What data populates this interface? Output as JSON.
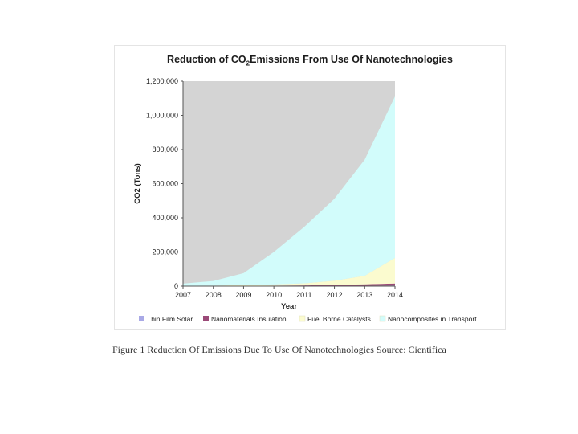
{
  "chart_data": {
    "type": "area",
    "stacked": true,
    "title_parts": {
      "pre": "Reduction of CO",
      "sub": "2",
      "post": "Emissions From Use Of Nanotechnologies"
    },
    "xlabel": "Year",
    "ylabel": "CO2 (Tons)",
    "x": [
      2007,
      2008,
      2009,
      2010,
      2011,
      2012,
      2013,
      2014
    ],
    "ylim": [
      0,
      1200000
    ],
    "yticks": [
      "0",
      "200,000",
      "400,000",
      "600,000",
      "800,000",
      "1,000,000",
      "1,200,000"
    ],
    "xticks": [
      "2007",
      "2008",
      "2009",
      "2010",
      "2011",
      "2012",
      "2013",
      "2014"
    ],
    "legend_position": "bottom",
    "plot_background": "#d4d4d4",
    "series": [
      {
        "name": "Thin Film Solar",
        "color": "#a9a9e6",
        "values": [
          200,
          300,
          500,
          800,
          1200,
          1800,
          2600,
          3500
        ]
      },
      {
        "name": "Nanomaterials Insulation",
        "color": "#9b4a78",
        "values": [
          500,
          800,
          1200,
          2000,
          3000,
          5000,
          8000,
          12000
        ]
      },
      {
        "name": "Fuel Borne Catalysts",
        "color": "#fbfbcf",
        "values": [
          1000,
          2000,
          4000,
          7000,
          12000,
          25000,
          50000,
          150000
        ]
      },
      {
        "name": "Nanocomposites in Transport",
        "color": "#d2fcfb",
        "values": [
          13000,
          27000,
          70000,
          190000,
          330000,
          480000,
          680000,
          945000
        ]
      }
    ]
  },
  "caption": "Figure 1 Reduction Of Emissions Due To Use Of Nanotechnologies Source: Cientifica"
}
